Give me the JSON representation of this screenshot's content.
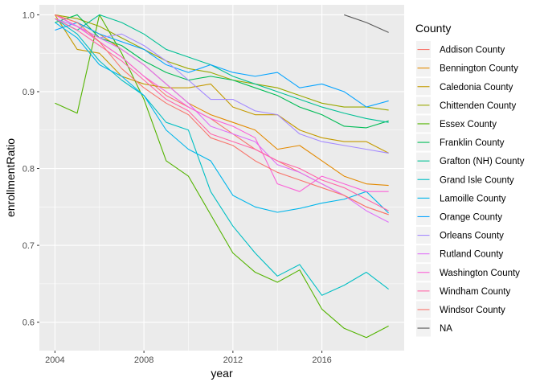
{
  "chart_data": {
    "type": "line",
    "xlabel": "year",
    "ylabel": "enrollmentRatio",
    "xlim": [
      2003.3,
      2019.7
    ],
    "ylim": [
      0.563,
      1.013
    ],
    "x_ticks": [
      2004,
      2008,
      2012,
      2016
    ],
    "y_ticks": [
      0.6,
      0.7,
      0.8,
      0.9,
      1.0
    ],
    "y_tick_labels": [
      "0.6",
      "0.7",
      "0.8",
      "0.9",
      "1.0"
    ],
    "grid": true,
    "legend_position": "right",
    "legend_title": "County",
    "x": [
      2004,
      2005,
      2006,
      2007,
      2008,
      2009,
      2010,
      2011,
      2012,
      2013,
      2014,
      2015,
      2016,
      2017,
      2018,
      2019
    ],
    "series": [
      {
        "name": "Addison County",
        "color": "#F8766D",
        "values": [
          1.0,
          0.985,
          0.965,
          0.945,
          0.92,
          0.895,
          0.88,
          0.865,
          0.845,
          0.825,
          0.81,
          0.795,
          0.78,
          0.765,
          0.75,
          0.74
        ]
      },
      {
        "name": "Bennington County",
        "color": "#E38900",
        "values": [
          1.0,
          0.99,
          0.975,
          0.955,
          0.935,
          0.91,
          0.885,
          0.87,
          0.86,
          0.85,
          0.825,
          0.83,
          0.81,
          0.79,
          0.78,
          0.778
        ]
      },
      {
        "name": "Caledonia County",
        "color": "#C49A00",
        "values": [
          1.0,
          0.955,
          0.95,
          0.92,
          0.91,
          0.905,
          0.905,
          0.91,
          0.88,
          0.87,
          0.87,
          0.85,
          0.84,
          0.835,
          0.835,
          0.82
        ]
      },
      {
        "name": "Chittenden County",
        "color": "#99A800",
        "values": [
          1.0,
          0.995,
          0.985,
          0.97,
          0.955,
          0.94,
          0.93,
          0.925,
          0.915,
          0.91,
          0.905,
          0.895,
          0.885,
          0.88,
          0.88,
          0.876
        ]
      },
      {
        "name": "Essex County",
        "color": "#53B400",
        "values": [
          0.885,
          0.872,
          1.0,
          0.95,
          0.89,
          0.81,
          0.79,
          0.74,
          0.69,
          0.665,
          0.652,
          0.668,
          0.617,
          0.592,
          0.58,
          0.595
        ]
      },
      {
        "name": "Franklin County",
        "color": "#00BC56",
        "values": [
          0.99,
          1.0,
          0.97,
          0.96,
          0.94,
          0.925,
          0.915,
          0.92,
          0.915,
          0.905,
          0.895,
          0.88,
          0.87,
          0.855,
          0.853,
          0.862
        ]
      },
      {
        "name": "Grafton (NH) County",
        "color": "#00C094",
        "values": [
          0.995,
          0.98,
          1.0,
          0.99,
          0.975,
          0.955,
          0.945,
          0.935,
          0.92,
          0.91,
          0.9,
          0.89,
          0.88,
          0.872,
          0.865,
          0.86
        ]
      },
      {
        "name": "Grand Isle County",
        "color": "#00BFC4",
        "values": [
          0.995,
          0.975,
          0.94,
          0.915,
          0.895,
          0.86,
          0.85,
          0.77,
          0.725,
          0.69,
          0.66,
          0.675,
          0.635,
          0.648,
          0.665,
          0.643
        ]
      },
      {
        "name": "Lamoille County",
        "color": "#00B6EB",
        "values": [
          0.99,
          0.97,
          0.935,
          0.92,
          0.895,
          0.85,
          0.825,
          0.81,
          0.765,
          0.75,
          0.743,
          0.748,
          0.755,
          0.76,
          0.77,
          0.742
        ]
      },
      {
        "name": "Orange County",
        "color": "#06A4FF",
        "values": [
          0.98,
          0.99,
          0.975,
          0.965,
          0.955,
          0.935,
          0.925,
          0.935,
          0.925,
          0.92,
          0.925,
          0.905,
          0.91,
          0.9,
          0.88,
          0.888
        ]
      },
      {
        "name": "Orleans County",
        "color": "#A58AFF",
        "values": [
          0.995,
          0.985,
          0.97,
          0.975,
          0.96,
          0.94,
          0.915,
          0.89,
          0.89,
          0.875,
          0.87,
          0.845,
          0.835,
          0.83,
          0.825,
          0.82
        ]
      },
      {
        "name": "Rutland County",
        "color": "#DF70F8",
        "values": [
          1.0,
          0.985,
          0.97,
          0.955,
          0.935,
          0.91,
          0.885,
          0.855,
          0.845,
          0.835,
          0.805,
          0.795,
          0.78,
          0.765,
          0.745,
          0.73
        ]
      },
      {
        "name": "Washington County",
        "color": "#FB61D7",
        "values": [
          1.0,
          0.985,
          0.965,
          0.945,
          0.92,
          0.9,
          0.88,
          0.865,
          0.855,
          0.84,
          0.78,
          0.77,
          0.79,
          0.78,
          0.77,
          0.77
        ]
      },
      {
        "name": "Windham County",
        "color": "#FF66A8",
        "values": [
          0.995,
          0.98,
          0.96,
          0.94,
          0.915,
          0.89,
          0.875,
          0.845,
          0.835,
          0.825,
          0.81,
          0.8,
          0.785,
          0.775,
          0.76,
          0.745
        ]
      },
      {
        "name": "Windsor County",
        "color": "#F8766D",
        "values": [
          1.0,
          0.99,
          0.965,
          0.93,
          0.905,
          0.885,
          0.87,
          0.84,
          0.83,
          0.81,
          0.795,
          0.785,
          0.775,
          0.765,
          0.75,
          0.74
        ]
      },
      {
        "name": "NA",
        "color": "#595959",
        "values": [
          null,
          null,
          null,
          null,
          null,
          null,
          null,
          null,
          null,
          null,
          null,
          null,
          null,
          1.0,
          0.99,
          0.977
        ]
      }
    ]
  }
}
